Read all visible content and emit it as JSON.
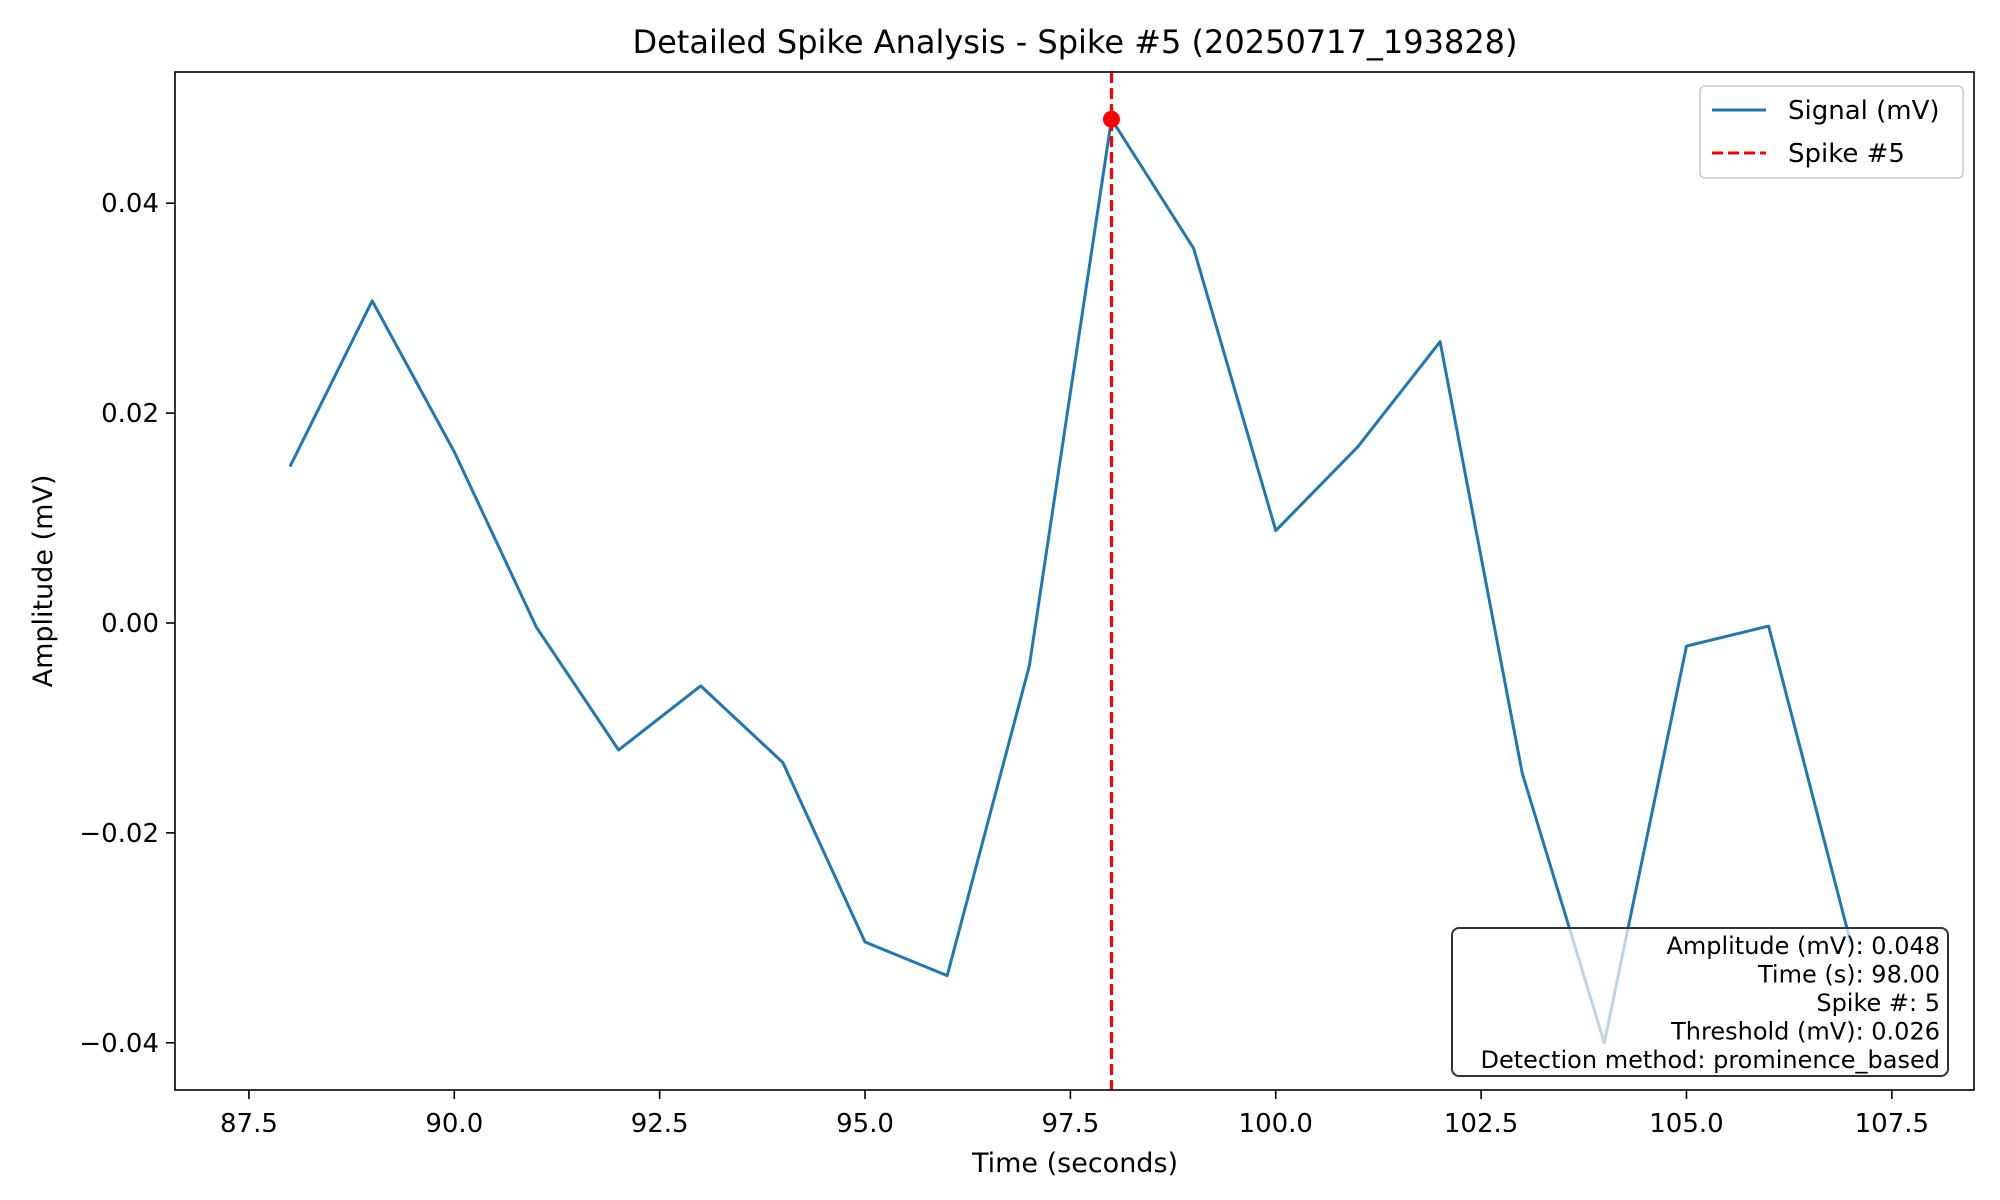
{
  "chart_data": {
    "type": "line",
    "title": "Detailed Spike Analysis - Spike #5 (20250717_193828)",
    "xlabel": "Time (seconds)",
    "ylabel": "Amplitude (mV)",
    "xlim": [
      86.6,
      108.5
    ],
    "ylim": [
      -0.0445,
      0.0525
    ],
    "x_ticks": [
      87.5,
      90.0,
      92.5,
      95.0,
      97.5,
      100.0,
      102.5,
      105.0,
      107.5
    ],
    "x_tick_labels": [
      "87.5",
      "90.0",
      "92.5",
      "95.0",
      "97.5",
      "100.0",
      "102.5",
      "105.0",
      "107.5"
    ],
    "y_ticks": [
      0.04,
      0.02,
      0.0,
      -0.02,
      -0.04
    ],
    "y_tick_labels": [
      "0.04",
      "0.02",
      "0.00",
      "−0.02",
      "−0.04"
    ],
    "grid": false,
    "series": [
      {
        "name": "Signal (mV)",
        "color": "#1f77b4",
        "x": [
          88,
          89,
          90,
          91,
          92,
          93,
          94,
          95,
          96,
          97,
          98,
          99,
          100,
          101,
          102,
          103,
          104,
          105,
          106,
          107
        ],
        "y": [
          0.0149,
          0.0307,
          0.0163,
          -0.0004,
          -0.0121,
          -0.006,
          -0.0133,
          -0.0304,
          -0.0336,
          -0.0041,
          0.048,
          0.0357,
          0.0088,
          0.0168,
          0.0268,
          -0.0143,
          -0.04,
          -0.0022,
          -0.0003,
          -0.0305
        ]
      }
    ],
    "spike_marker": {
      "name": "Spike #5",
      "x": 98.0,
      "y": 0.048,
      "color": "#ff0000"
    },
    "legend": {
      "placement": "top-right",
      "entries": [
        {
          "label": "Signal (mV)",
          "style": "solid",
          "color": "#1f77b4"
        },
        {
          "label": "Spike #5",
          "style": "dashed",
          "color": "#ff0000"
        }
      ]
    },
    "info_box": {
      "placement": "bottom-right",
      "lines": [
        "Amplitude (mV): 0.048",
        "Time (s): 98.00",
        "Spike #: 5",
        "Threshold (mV): 0.026",
        "Detection method: prominence_based"
      ]
    }
  }
}
